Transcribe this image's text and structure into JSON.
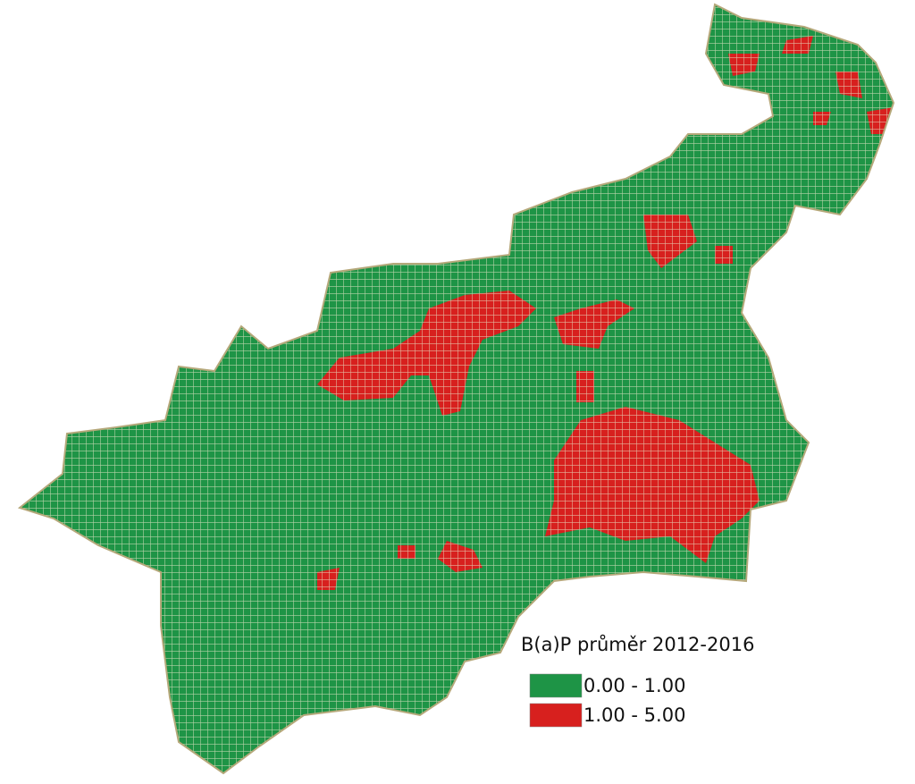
{
  "legend": {
    "title": "B(a)P průměr 2012-2016",
    "items": [
      {
        "label": "0.00 - 1.00",
        "color": "#1e9446"
      },
      {
        "label": "1.00 - 5.00",
        "color": "#d7201e"
      }
    ]
  }
}
